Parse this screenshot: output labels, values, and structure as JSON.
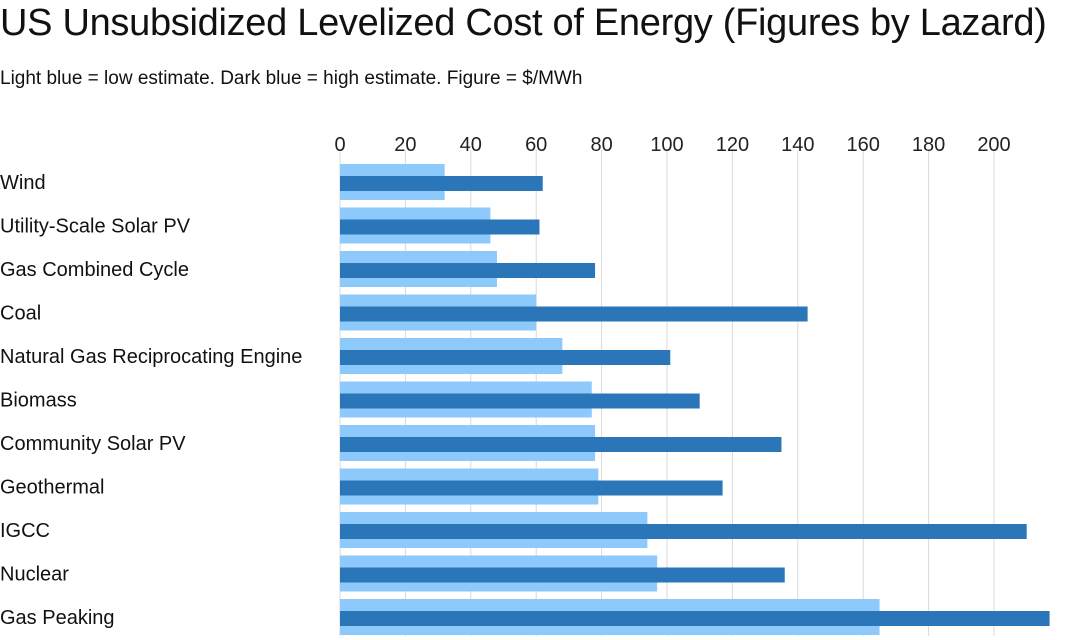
{
  "title": "US Unsubsidized Levelized Cost of Energy (Figures by Lazard)",
  "subtitle": "Light blue = low estimate. Dark blue = high estimate. Figure = $/MWh",
  "colors": {
    "low": "#8ec9fb",
    "high": "#2a76b8",
    "grid": "#d9d9d9"
  },
  "chart_data": {
    "type": "bar",
    "orientation": "horizontal",
    "categories": [
      "Wind",
      "Utility-Scale Solar PV",
      "Gas Combined Cycle",
      "Coal",
      "Natural Gas Reciprocating Engine",
      "Biomass",
      "Community Solar PV",
      "Geothermal",
      "IGCC",
      "Nuclear",
      "Gas Peaking"
    ],
    "series": [
      {
        "values": [
          32,
          46,
          48,
          60,
          68,
          77,
          78,
          79,
          94,
          97,
          165
        ]
      },
      {
        "values": [
          62,
          61,
          78,
          143,
          101,
          110,
          135,
          117,
          210,
          136,
          217
        ]
      }
    ],
    "x_ticks": [
      0,
      20,
      40,
      60,
      80,
      100,
      120,
      140,
      160,
      180,
      200
    ],
    "xlim": [
      0,
      220
    ],
    "tick_position": "top",
    "grid": true
  }
}
